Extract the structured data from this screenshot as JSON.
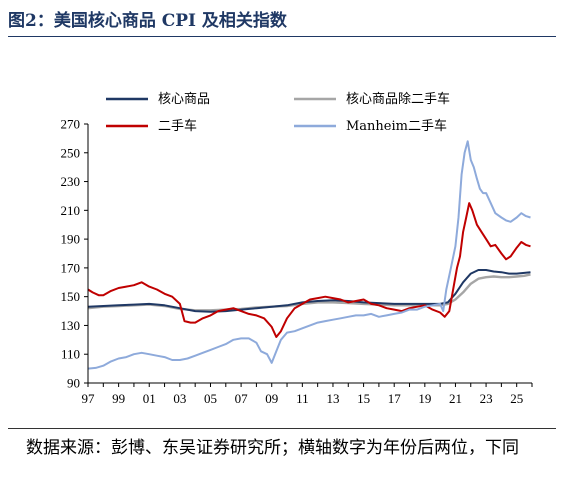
{
  "title": "图2：美国核心商品 CPI 及相关指数",
  "source": "数据来源：彭博、东吴证券研究所；横轴数字为年份后两位，下同",
  "chart_data": {
    "type": "line",
    "title": "图2：美国核心商品 CPI 及相关指数",
    "xlabel": "",
    "ylabel": "",
    "xlim": [
      1997,
      2026
    ],
    "ylim": [
      90,
      270
    ],
    "yticks": [
      90,
      110,
      130,
      150,
      170,
      190,
      210,
      230,
      250,
      270
    ],
    "xticks": [
      1997,
      1999,
      2001,
      2003,
      2005,
      2007,
      2009,
      2011,
      2013,
      2015,
      2017,
      2019,
      2021,
      2023,
      2025
    ],
    "xtick_labels": [
      "97",
      "99",
      "01",
      "03",
      "05",
      "07",
      "09",
      "11",
      "13",
      "15",
      "17",
      "19",
      "21",
      "23",
      "25"
    ],
    "grid": false,
    "legend": "top",
    "series": [
      {
        "name": "核心商品",
        "color": "#1f3864",
        "x": [
          1997,
          1998,
          1999,
          2000,
          2001,
          2002,
          2003,
          2004,
          2005,
          2006,
          2007,
          2008,
          2009,
          2010,
          2011,
          2012,
          2013,
          2014,
          2015,
          2016,
          2017,
          2018,
          2019,
          2020,
          2020.5,
          2021,
          2021.5,
          2022,
          2022.5,
          2023,
          2023.5,
          2024,
          2024.5,
          2025,
          2025.5,
          2025.9
        ],
        "y": [
          143,
          143.5,
          144,
          144.5,
          145,
          144,
          142,
          140,
          139.5,
          140,
          141,
          142,
          143,
          144,
          146,
          147,
          147.5,
          147,
          146,
          145.5,
          145,
          145,
          145,
          145,
          146,
          152,
          160,
          166,
          168.5,
          168.5,
          167.5,
          167,
          166,
          166,
          166.5,
          167
        ]
      },
      {
        "name": "核心商品除二手车",
        "color": "#a6a6a6",
        "x": [
          1997,
          1998,
          1999,
          2000,
          2001,
          2002,
          2003,
          2004,
          2005,
          2006,
          2007,
          2008,
          2009,
          2010,
          2011,
          2012,
          2013,
          2014,
          2015,
          2016,
          2017,
          2018,
          2019,
          2020,
          2020.5,
          2021,
          2021.5,
          2022,
          2022.5,
          2023,
          2023.5,
          2024,
          2024.5,
          2025,
          2025.5,
          2025.9
        ],
        "y": [
          142,
          143,
          143.5,
          144,
          144.5,
          143.5,
          141.5,
          140.5,
          140.5,
          141,
          141.5,
          142.5,
          143,
          143.5,
          145,
          146,
          146,
          145.5,
          145,
          144.5,
          144,
          144,
          144,
          144,
          145,
          148,
          153,
          159,
          162.5,
          163.5,
          164,
          163.5,
          163.5,
          164,
          164.5,
          165.5
        ]
      },
      {
        "name": "二手车",
        "color": "#c00000",
        "x": [
          1997,
          1997.3,
          1997.7,
          1998,
          1998.5,
          1999,
          1999.5,
          2000,
          2000.5,
          2001,
          2001.5,
          2002,
          2002.5,
          2003,
          2003.3,
          2003.7,
          2004,
          2004.5,
          2005,
          2005.5,
          2006,
          2006.5,
          2007,
          2007.5,
          2008,
          2008.5,
          2009,
          2009.3,
          2009.6,
          2010,
          2010.5,
          2011,
          2011.5,
          2012,
          2012.5,
          2013,
          2013.5,
          2014,
          2014.5,
          2015,
          2015.5,
          2016,
          2016.5,
          2017,
          2017.5,
          2018,
          2018.5,
          2019,
          2019.5,
          2020,
          2020.3,
          2020.6,
          2020.9,
          2021.1,
          2021.3,
          2021.5,
          2021.7,
          2021.9,
          2022.1,
          2022.4,
          2022.7,
          2023,
          2023.3,
          2023.6,
          2024,
          2024.3,
          2024.6,
          2025,
          2025.3,
          2025.6,
          2025.9
        ],
        "y": [
          155,
          153,
          151,
          151,
          154,
          156,
          157,
          158,
          160,
          157,
          155,
          152,
          150,
          145,
          133,
          132,
          132,
          135,
          137,
          140,
          141,
          142,
          140,
          138,
          137,
          135,
          129,
          122,
          126,
          135,
          142,
          145,
          148,
          149,
          150,
          149,
          148,
          146,
          147,
          148,
          145,
          144,
          142,
          141,
          140,
          142,
          143,
          144,
          141,
          139,
          136,
          140,
          158,
          170,
          178,
          195,
          205,
          215,
          210,
          200,
          195,
          190,
          185,
          186,
          180,
          176,
          178,
          184,
          188,
          186,
          185
        ]
      },
      {
        "name": "Manheim二手车",
        "color": "#8eaadb",
        "x": [
          1997,
          1997.5,
          1998,
          1998.5,
          1999,
          1999.5,
          2000,
          2000.5,
          2001,
          2001.5,
          2002,
          2002.5,
          2003,
          2003.5,
          2004,
          2004.5,
          2005,
          2005.5,
          2006,
          2006.5,
          2007,
          2007.5,
          2008,
          2008.3,
          2008.7,
          2009,
          2009.3,
          2009.6,
          2010,
          2010.5,
          2011,
          2011.5,
          2012,
          2012.5,
          2013,
          2013.5,
          2014,
          2014.5,
          2015,
          2015.5,
          2016,
          2016.5,
          2017,
          2017.5,
          2018,
          2018.5,
          2019,
          2019.5,
          2020,
          2020.2,
          2020.4,
          2020.7,
          2021,
          2021.2,
          2021.4,
          2021.6,
          2021.8,
          2022,
          2022.2,
          2022.4,
          2022.6,
          2022.8,
          2023,
          2023.3,
          2023.6,
          2024,
          2024.3,
          2024.6,
          2025,
          2025.3,
          2025.6,
          2025.9
        ],
        "y": [
          100,
          100.5,
          102,
          105,
          107,
          108,
          110,
          111,
          110,
          109,
          108,
          106,
          106,
          107,
          109,
          111,
          113,
          115,
          117,
          120,
          121,
          121,
          118,
          112,
          110,
          104,
          112,
          120,
          125,
          126,
          128,
          130,
          132,
          133,
          134,
          135,
          136,
          137,
          137,
          138,
          136,
          137,
          138,
          139,
          141,
          141,
          143,
          144,
          145,
          140,
          155,
          170,
          185,
          205,
          235,
          250,
          258,
          245,
          240,
          232,
          225,
          222,
          222,
          215,
          208,
          205,
          203,
          202,
          205,
          208,
          206,
          205
        ]
      }
    ]
  }
}
